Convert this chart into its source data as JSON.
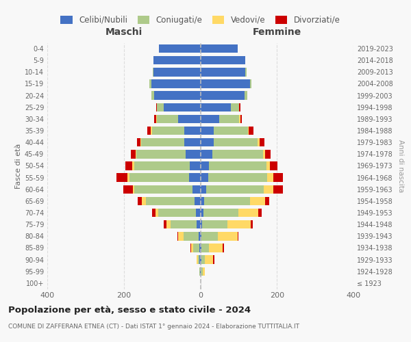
{
  "age_groups": [
    "100+",
    "95-99",
    "90-94",
    "85-89",
    "80-84",
    "75-79",
    "70-74",
    "65-69",
    "60-64",
    "55-59",
    "50-54",
    "45-49",
    "40-44",
    "35-39",
    "30-34",
    "25-29",
    "20-24",
    "15-19",
    "10-14",
    "5-9",
    "0-4"
  ],
  "birth_years": [
    "≤ 1923",
    "1924-1928",
    "1929-1933",
    "1934-1938",
    "1939-1943",
    "1944-1948",
    "1949-1953",
    "1954-1958",
    "1959-1963",
    "1964-1968",
    "1969-1973",
    "1974-1978",
    "1979-1983",
    "1984-1988",
    "1989-1993",
    "1994-1998",
    "1999-2003",
    "2004-2008",
    "2009-2013",
    "2014-2018",
    "2019-2023"
  ],
  "maschi": {
    "celibi": [
      0,
      1,
      2,
      3,
      5,
      10,
      12,
      15,
      20,
      30,
      28,
      38,
      42,
      42,
      58,
      95,
      120,
      128,
      122,
      122,
      108
    ],
    "coniugati": [
      0,
      2,
      5,
      16,
      38,
      68,
      98,
      128,
      152,
      155,
      145,
      130,
      112,
      85,
      55,
      18,
      8,
      5,
      2,
      0,
      0
    ],
    "vedovi": [
      0,
      0,
      2,
      5,
      15,
      10,
      8,
      10,
      5,
      5,
      5,
      2,
      2,
      2,
      2,
      0,
      0,
      0,
      0,
      0,
      0
    ],
    "divorziati": [
      0,
      0,
      0,
      2,
      2,
      8,
      8,
      10,
      25,
      30,
      18,
      12,
      10,
      10,
      5,
      2,
      0,
      0,
      0,
      0,
      0
    ]
  },
  "femmine": {
    "nubili": [
      0,
      1,
      2,
      3,
      3,
      5,
      8,
      10,
      15,
      20,
      22,
      32,
      35,
      35,
      50,
      80,
      115,
      130,
      118,
      118,
      98
    ],
    "coniugate": [
      0,
      5,
      10,
      20,
      42,
      65,
      92,
      120,
      150,
      155,
      150,
      132,
      115,
      90,
      52,
      22,
      8,
      4,
      2,
      0,
      0
    ],
    "vedove": [
      0,
      5,
      22,
      36,
      52,
      62,
      52,
      40,
      25,
      15,
      10,
      5,
      5,
      2,
      2,
      0,
      0,
      0,
      0,
      0,
      0
    ],
    "divorziate": [
      0,
      0,
      2,
      2,
      2,
      5,
      8,
      10,
      25,
      25,
      20,
      15,
      12,
      12,
      5,
      2,
      0,
      0,
      0,
      0,
      0
    ]
  },
  "colors": {
    "celibi": "#4472C4",
    "coniugati": "#AECA8A",
    "vedovi": "#FFD966",
    "divorziati": "#CC0000"
  },
  "title_main": "Popolazione per età, sesso e stato civile - 2024",
  "title_sub": "COMUNE DI ZAFFERANA ETNEA (CT) - Dati ISTAT 1° gennaio 2024 - Elaborazione TUTTITALIA.IT",
  "maschi_label": "Maschi",
  "femmine_label": "Femmine",
  "ylabel_left": "Fasce di età",
  "ylabel_right": "Anni di nascita",
  "xlim": 400,
  "legend_labels": [
    "Celibi/Nubili",
    "Coniugati/e",
    "Vedovi/e",
    "Divorziati/e"
  ],
  "background_color": "#f8f8f8",
  "grid_color": "#dddddd"
}
